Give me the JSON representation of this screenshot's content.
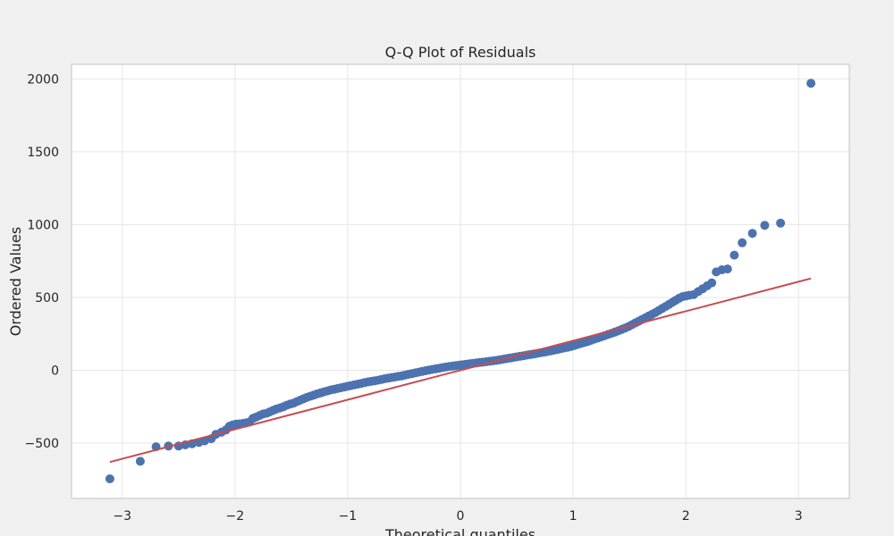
{
  "chart_data": {
    "type": "scatter",
    "title": "Q-Q Plot of Residuals",
    "xlabel": "Theoretical quantiles",
    "ylabel": "Ordered Values",
    "xlim": [
      -3.45,
      3.45
    ],
    "ylim": [
      -880,
      2100
    ],
    "x_ticks": [
      -3,
      -2,
      -1,
      0,
      1,
      2,
      3
    ],
    "x_tick_labels": [
      "−3",
      "−2",
      "−1",
      "0",
      "1",
      "2",
      "3"
    ],
    "y_ticks": [
      -500,
      0,
      500,
      1000,
      1500,
      2000
    ],
    "y_tick_labels": [
      "−500",
      "0",
      "500",
      "1000",
      "1500",
      "2000"
    ],
    "grid": true,
    "colors": {
      "background": "#f0f0f0",
      "plot_area": "#ffffff",
      "points": "#4c72b0",
      "fit_line": "#c44e52",
      "grid": "#e6e6e6",
      "spine": "#cccccc"
    },
    "series": [
      {
        "kind": "scatter",
        "color": "#4c72b0",
        "x": [
          -3.11,
          -2.84,
          -2.7,
          -2.59,
          -2.5,
          -2.44,
          -2.38,
          -2.32,
          -2.27,
          -2.21,
          -2.17,
          -2.12,
          -2.08,
          -2.05,
          -2.02,
          -1.99,
          -1.96,
          -1.93,
          -1.9,
          -1.87,
          -1.84,
          -1.81,
          -1.78,
          -1.75,
          -1.72,
          -1.69,
          -1.66,
          -1.63,
          -1.6,
          -1.57,
          -1.54,
          -1.51,
          -1.48,
          -1.45,
          -1.42,
          -1.39,
          -1.36,
          -1.33,
          -1.3,
          -1.27,
          -1.24,
          -1.21,
          -1.18,
          -1.15,
          -1.12,
          -1.09,
          -1.06,
          -1.03,
          -1.0,
          -0.97,
          -0.94,
          -0.91,
          -0.88,
          -0.85,
          -0.82,
          -0.79,
          -0.76,
          -0.73,
          -0.7,
          -0.67,
          -0.64,
          -0.61,
          -0.58,
          -0.55,
          -0.52,
          -0.49,
          -0.46,
          -0.43,
          -0.4,
          -0.37,
          -0.34,
          -0.31,
          -0.28,
          -0.25,
          -0.22,
          -0.19,
          -0.16,
          -0.13,
          -0.1,
          -0.07,
          -0.04,
          -0.01,
          0.02,
          0.05,
          0.08,
          0.11,
          0.14,
          0.17,
          0.2,
          0.23,
          0.26,
          0.29,
          0.32,
          0.35,
          0.38,
          0.41,
          0.44,
          0.47,
          0.5,
          0.53,
          0.56,
          0.59,
          0.62,
          0.65,
          0.68,
          0.71,
          0.74,
          0.77,
          0.8,
          0.83,
          0.86,
          0.89,
          0.92,
          0.95,
          0.98,
          1.01,
          1.04,
          1.07,
          1.1,
          1.13,
          1.16,
          1.19,
          1.22,
          1.25,
          1.28,
          1.31,
          1.34,
          1.37,
          1.4,
          1.43,
          1.46,
          1.49,
          1.52,
          1.55,
          1.58,
          1.61,
          1.64,
          1.67,
          1.7,
          1.73,
          1.76,
          1.79,
          1.82,
          1.85,
          1.88,
          1.91,
          1.94,
          1.97,
          2.0,
          2.03,
          2.07,
          2.11,
          2.15,
          2.19,
          2.23,
          2.27,
          2.32,
          2.37,
          2.43,
          2.5,
          2.59,
          2.7,
          2.84,
          3.11
        ],
        "y": [
          -745,
          -625,
          -525,
          -520,
          -520,
          -512,
          -505,
          -495,
          -485,
          -470,
          -440,
          -425,
          -410,
          -385,
          -375,
          -370,
          -368,
          -365,
          -360,
          -355,
          -330,
          -320,
          -310,
          -300,
          -295,
          -285,
          -275,
          -265,
          -258,
          -250,
          -240,
          -232,
          -225,
          -215,
          -205,
          -195,
          -185,
          -178,
          -170,
          -162,
          -155,
          -148,
          -142,
          -135,
          -130,
          -125,
          -120,
          -115,
          -110,
          -105,
          -100,
          -95,
          -90,
          -85,
          -80,
          -76,
          -72,
          -68,
          -63,
          -58,
          -54,
          -50,
          -46,
          -42,
          -38,
          -33,
          -28,
          -23,
          -18,
          -13,
          -8,
          -3,
          2,
          6,
          10,
          14,
          18,
          22,
          26,
          29,
          32,
          35,
          38,
          41,
          44,
          47,
          50,
          53,
          56,
          59,
          62,
          65,
          68,
          72,
          76,
          80,
          84,
          88,
          92,
          96,
          100,
          104,
          108,
          112,
          116,
          120,
          124,
          128,
          133,
          138,
          143,
          148,
          153,
          158,
          163,
          170,
          177,
          184,
          191,
          198,
          206,
          214,
          222,
          230,
          238,
          246,
          254,
          262,
          270,
          280,
          290,
          300,
          312,
          324,
          336,
          348,
          360,
          372,
          384,
          396,
          410,
          424,
          438,
          452,
          466,
          480,
          494,
          505,
          510,
          515,
          520,
          540,
          560,
          580,
          600,
          675,
          690,
          695,
          790,
          875,
          940,
          995,
          1010,
          1970
        ]
      },
      {
        "kind": "line",
        "color": "#c44e52",
        "x": [
          -3.11,
          3.11
        ],
        "y": [
          -630,
          630
        ]
      }
    ]
  }
}
